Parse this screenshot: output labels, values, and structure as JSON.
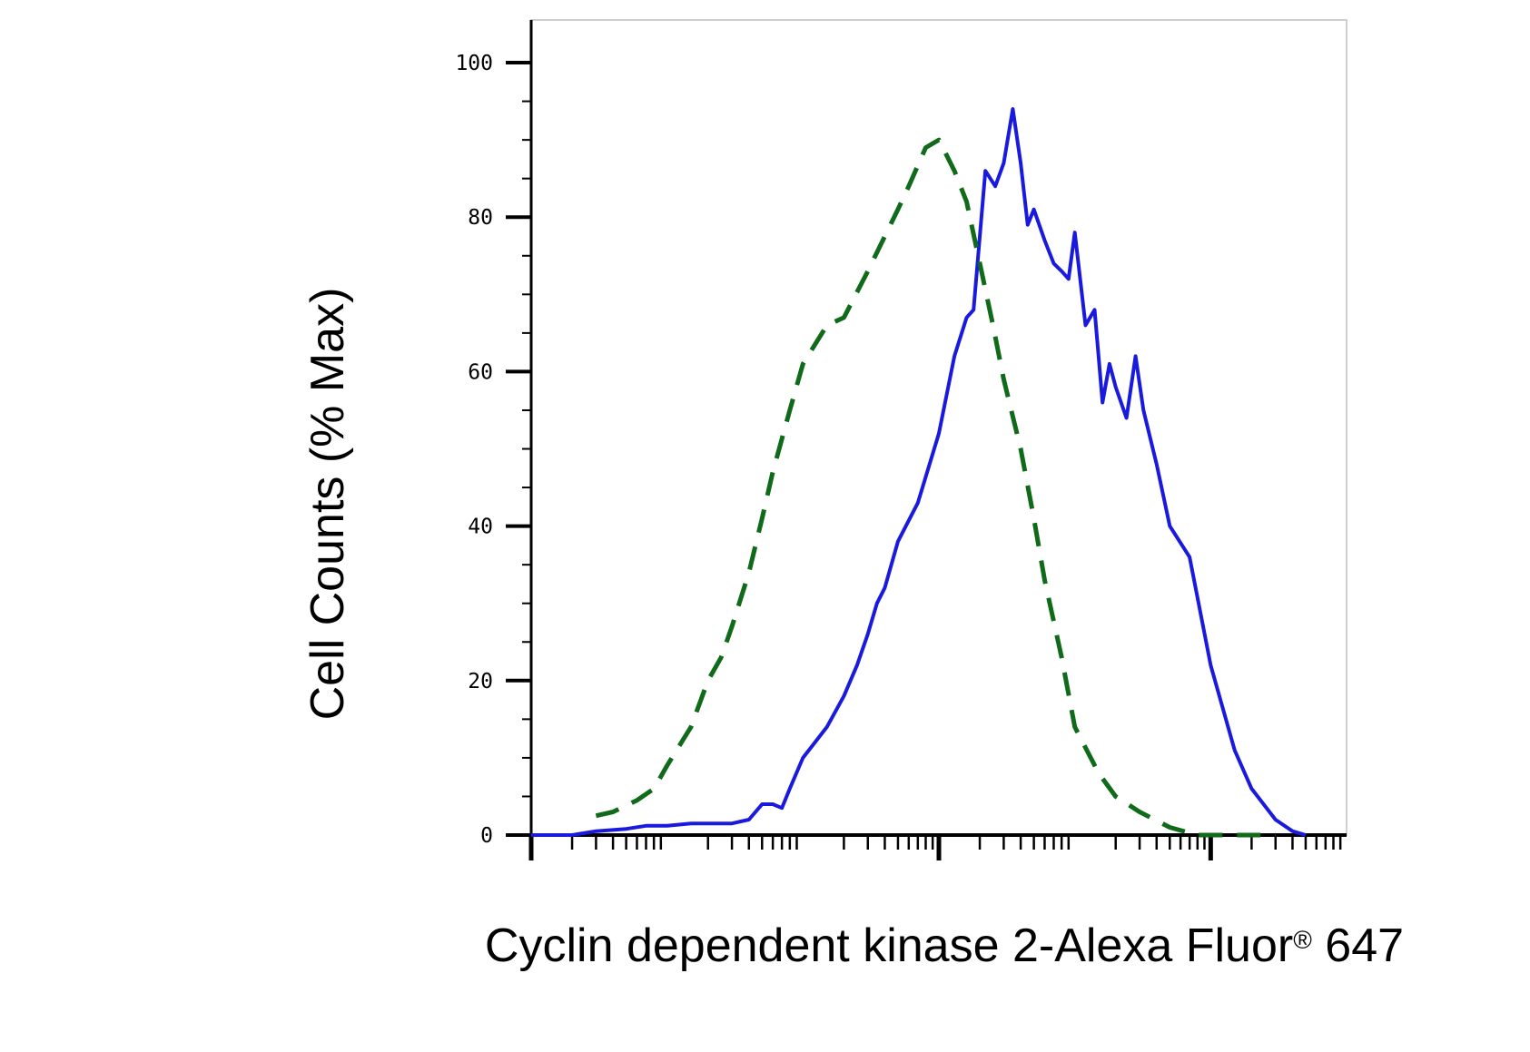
{
  "chart_data": {
    "type": "line",
    "title": "",
    "xlabel_main": "Cyclin dependent kinase 2-Alexa Fluor",
    "xlabel_sup": "®",
    "xlabel_end": " 647",
    "ylabel": "Cell Counts (% Max)",
    "xscale": "log",
    "xlim": [
      0.001,
      1000
    ],
    "ylim": [
      0,
      105
    ],
    "y_ticks": [
      "0",
      "20",
      "40",
      "60",
      "80",
      "100"
    ],
    "y_tick_values": [
      0,
      20,
      40,
      60,
      80,
      100
    ],
    "x_tick_labels": [],
    "legend": "none",
    "grid": false,
    "series": [
      {
        "color": "#1a1adf",
        "line_style": "solid",
        "points": [
          [
            0.001,
            0
          ],
          [
            0.002,
            0
          ],
          [
            0.003,
            0.5
          ],
          [
            0.005,
            0.8
          ],
          [
            0.007,
            1.2
          ],
          [
            0.01,
            1.2
          ],
          [
            0.015,
            1.5
          ],
          [
            0.02,
            1.5
          ],
          [
            0.03,
            1.5
          ],
          [
            0.04,
            2
          ],
          [
            0.05,
            4
          ],
          [
            0.06,
            4
          ],
          [
            0.07,
            3.5
          ],
          [
            0.08,
            6
          ],
          [
            0.1,
            10
          ],
          [
            0.15,
            14
          ],
          [
            0.2,
            18
          ],
          [
            0.25,
            22
          ],
          [
            0.3,
            26
          ],
          [
            0.35,
            30
          ],
          [
            0.4,
            32
          ],
          [
            0.5,
            38
          ],
          [
            0.7,
            43
          ],
          [
            1.0,
            52
          ],
          [
            1.3,
            62
          ],
          [
            1.6,
            67
          ],
          [
            1.8,
            68
          ],
          [
            2.2,
            86
          ],
          [
            2.6,
            84
          ],
          [
            3.0,
            87
          ],
          [
            3.5,
            94
          ],
          [
            4.0,
            87
          ],
          [
            4.5,
            79
          ],
          [
            5.0,
            81
          ],
          [
            6.0,
            77
          ],
          [
            7.0,
            74
          ],
          [
            8.0,
            73
          ],
          [
            9.0,
            72
          ],
          [
            10.0,
            78
          ],
          [
            12.0,
            66
          ],
          [
            14.0,
            68
          ],
          [
            16.0,
            56
          ],
          [
            18.0,
            61
          ],
          [
            20.0,
            58
          ],
          [
            24.0,
            54
          ],
          [
            28.0,
            62
          ],
          [
            32.0,
            55
          ],
          [
            40.0,
            48
          ],
          [
            50.0,
            40
          ],
          [
            70.0,
            36
          ],
          [
            100.0,
            22
          ],
          [
            150.0,
            11
          ],
          [
            200.0,
            6
          ],
          [
            300.0,
            2
          ],
          [
            400.0,
            0.5
          ],
          [
            500.0,
            0
          ]
        ]
      },
      {
        "color": "#0f6a1a",
        "line_style": "dashed",
        "points": [
          [
            0.003,
            2.5
          ],
          [
            0.004,
            3
          ],
          [
            0.006,
            4.5
          ],
          [
            0.008,
            6
          ],
          [
            0.01,
            9
          ],
          [
            0.015,
            14
          ],
          [
            0.02,
            20
          ],
          [
            0.025,
            23
          ],
          [
            0.03,
            27
          ],
          [
            0.04,
            34
          ],
          [
            0.05,
            41
          ],
          [
            0.06,
            47
          ],
          [
            0.08,
            55
          ],
          [
            0.1,
            61
          ],
          [
            0.15,
            66
          ],
          [
            0.2,
            67
          ],
          [
            0.3,
            73
          ],
          [
            0.5,
            81
          ],
          [
            0.6,
            84
          ],
          [
            0.8,
            89
          ],
          [
            1.0,
            90
          ],
          [
            1.3,
            86
          ],
          [
            1.6,
            82
          ],
          [
            2.0,
            74
          ],
          [
            2.5,
            66
          ],
          [
            3.0,
            59
          ],
          [
            4.0,
            50
          ],
          [
            5.0,
            41
          ],
          [
            6.0,
            33
          ],
          [
            8.0,
            23
          ],
          [
            10.0,
            14
          ],
          [
            15.0,
            8
          ],
          [
            20.0,
            5
          ],
          [
            30.0,
            3
          ],
          [
            50.0,
            1
          ],
          [
            80.0,
            0
          ],
          [
            150.0,
            0
          ],
          [
            300.0,
            0
          ]
        ]
      }
    ]
  }
}
